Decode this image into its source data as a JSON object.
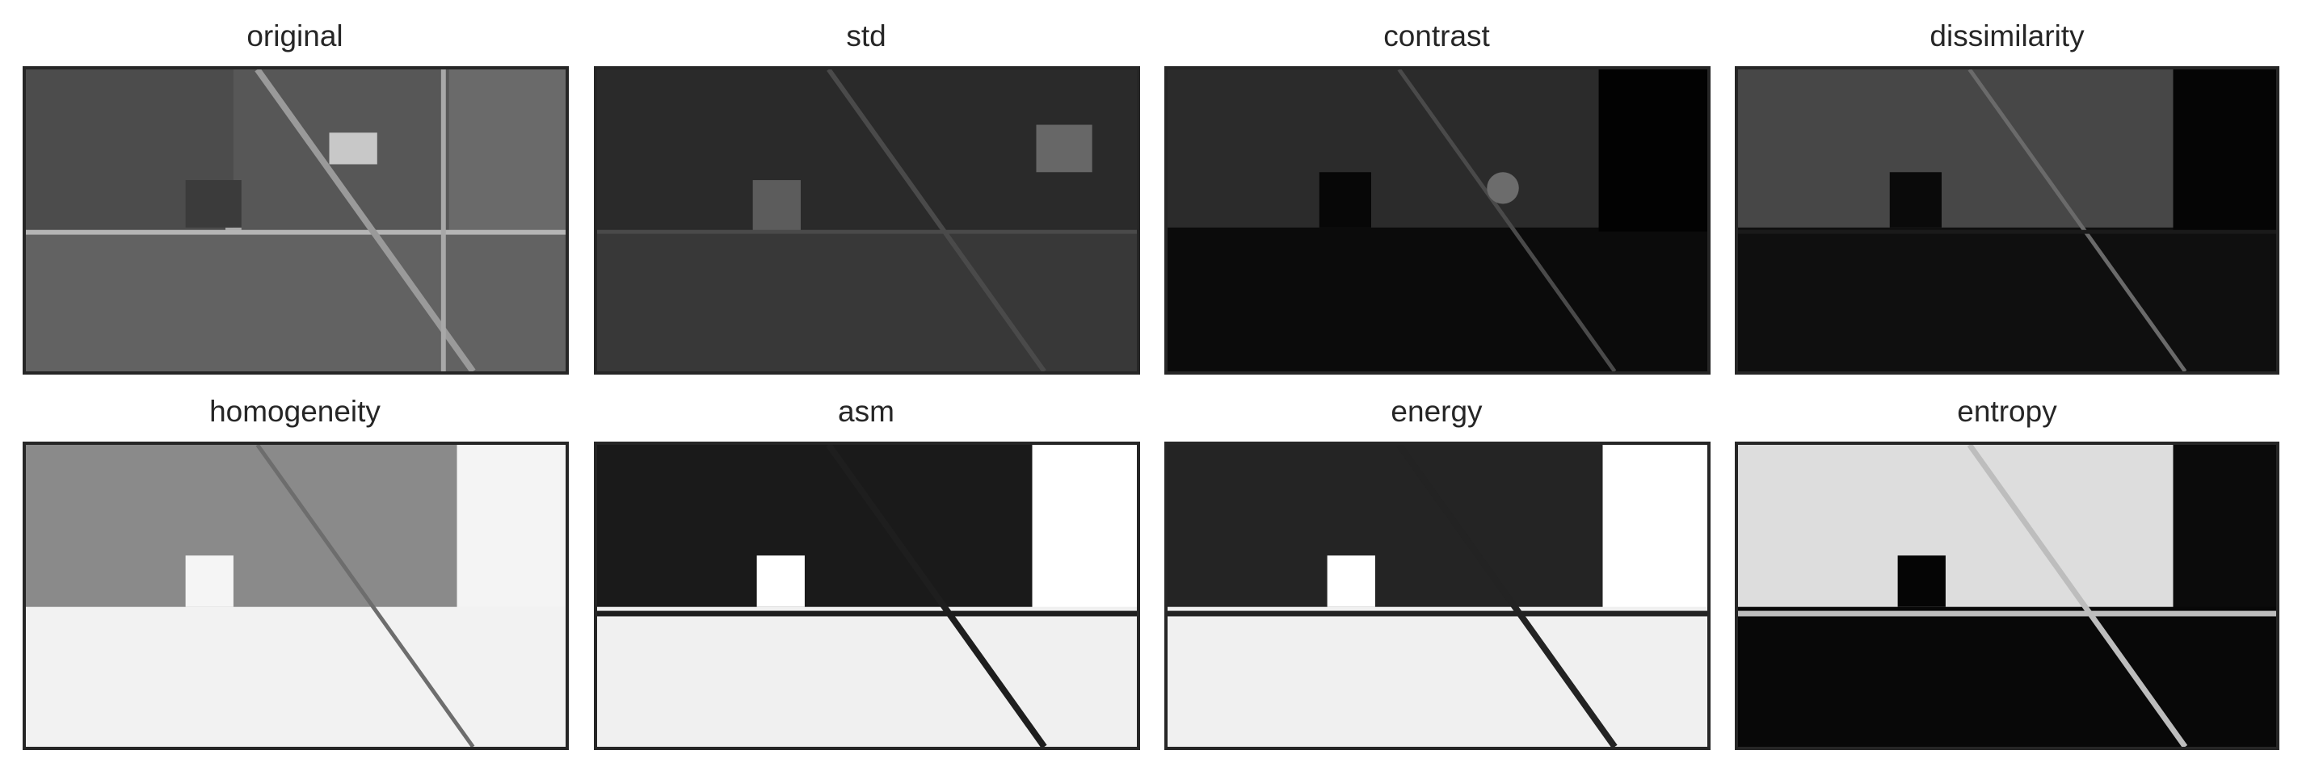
{
  "panels": [
    {
      "title": "original",
      "icon": "aerial-image"
    },
    {
      "title": "std",
      "icon": "texture-map"
    },
    {
      "title": "contrast",
      "icon": "texture-map"
    },
    {
      "title": "dissimilarity",
      "icon": "texture-map"
    },
    {
      "title": "homogeneity",
      "icon": "texture-map"
    },
    {
      "title": "asm",
      "icon": "texture-map"
    },
    {
      "title": "energy",
      "icon": "texture-map"
    },
    {
      "title": "entropy",
      "icon": "texture-map"
    }
  ],
  "colors": {
    "frame": "#262626",
    "title_text": "#262626",
    "background": "#ffffff"
  }
}
